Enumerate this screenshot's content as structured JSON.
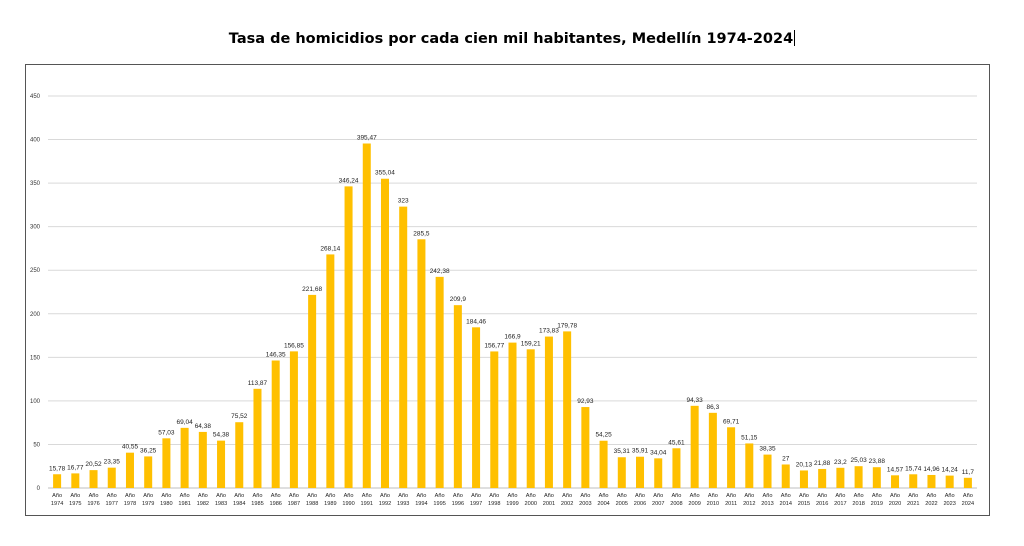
{
  "chart_data": {
    "type": "bar",
    "title": "Tasa de homicidios por cada cien mil habitantes, Medellín 1974-2024",
    "xlabel": "",
    "ylabel": "",
    "ylim": [
      0,
      450
    ],
    "yticks": [
      0,
      50,
      100,
      150,
      200,
      250,
      300,
      350,
      400,
      450
    ],
    "grid": true,
    "legend": "none",
    "bar_color": "#FFC000",
    "categories": [
      "Año 1974",
      "Año 1975",
      "Año 1976",
      "Año 1977",
      "Año 1978",
      "Año 1979",
      "Año 1980",
      "Año 1981",
      "Año 1982",
      "Año 1983",
      "Año 1984",
      "Año 1985",
      "Año 1986",
      "Año 1987",
      "Año 1988",
      "Año 1989",
      "Año 1990",
      "Año 1991",
      "Año 1992",
      "Año 1993",
      "Año 1994",
      "Año 1995",
      "Año 1996",
      "Año 1997",
      "Año 1998",
      "Año 1999",
      "Año 2000",
      "Año 2001",
      "Año 2002",
      "Año 2003",
      "Año 2004",
      "Año 2005",
      "Año 2006",
      "Año 2007",
      "Año 2008",
      "Año 2009",
      "Año 2010",
      "Año 2011",
      "Año 2012",
      "Año 2013",
      "Año 2014",
      "Año 2015",
      "Año 2016",
      "Año 2017",
      "Año 2018",
      "Año 2019",
      "Año 2020",
      "Año 2021",
      "Año 2022",
      "Año 2023",
      "Año 2024"
    ],
    "values": [
      15.78,
      16.77,
      20.52,
      23.35,
      40.55,
      36.25,
      57.03,
      69.04,
      64.38,
      54.38,
      75.52,
      113.87,
      146.35,
      156.85,
      221.68,
      268.14,
      346.24,
      395.47,
      355.04,
      323,
      285.5,
      242.38,
      209.9,
      184.46,
      156.77,
      166.9,
      159.21,
      173.83,
      179.78,
      92.93,
      54.25,
      35.31,
      35.91,
      34.04,
      45.61,
      94.33,
      86.3,
      69.71,
      51.15,
      38.35,
      27,
      20.13,
      21.88,
      23.2,
      25.03,
      23.88,
      14.57,
      15.74,
      14.96,
      14.24,
      11.7
    ],
    "data_labels": [
      "15,78",
      "16,77",
      "20,52",
      "23,35",
      "40,55",
      "36,25",
      "57,03",
      "69,04",
      "64,38",
      "54,38",
      "75,52",
      "113,87",
      "146,35",
      "156,85",
      "221,68",
      "268,14",
      "346,24",
      "395,47",
      "355,04",
      "323",
      "285,5",
      "242,38",
      "209,9",
      "184,46",
      "156,77",
      "166,9",
      "159,21",
      "173,83",
      "179,78",
      "92,93",
      "54,25",
      "35,31",
      "35,91",
      "34,04",
      "45,61",
      "94,33",
      "86,3",
      "69,71",
      "51,15",
      "38,35",
      "27",
      "20,13",
      "21,88",
      "23,2",
      "25,03",
      "23,88",
      "14,57",
      "15,74",
      "14,96",
      "14,24",
      "11,7"
    ]
  }
}
